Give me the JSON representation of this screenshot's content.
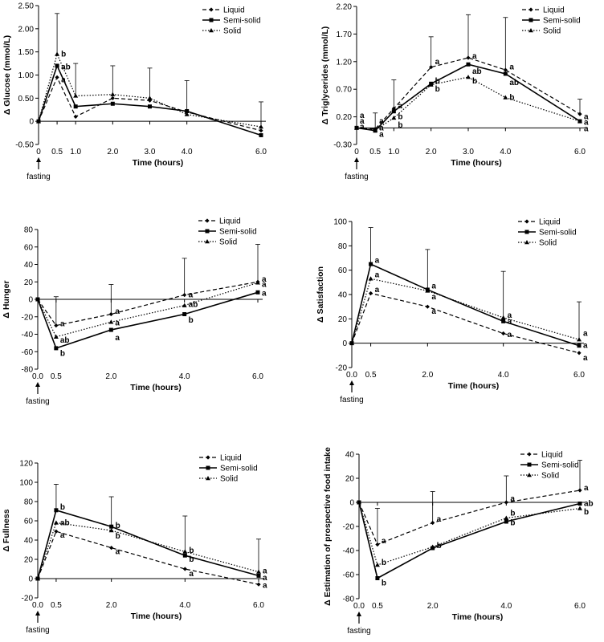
{
  "chart_data": [
    {
      "id": "glucose",
      "type": "line",
      "ylabel": "Δ Glucose (mmol/L)",
      "xlabel": "Time (hours)",
      "ylim": [
        -0.5,
        2.5
      ],
      "yticks": [
        "2.50",
        "2.00",
        "1.50",
        "1.00",
        "0.50",
        "0",
        "-0.50"
      ],
      "ytick_values": [
        2.5,
        2.0,
        1.5,
        1.0,
        0.5,
        0,
        -0.5
      ],
      "xticks": [
        "0",
        "0.5",
        "1.0",
        "2.0",
        "3.0",
        "4.0",
        "6.0"
      ],
      "xtick_values": [
        0,
        0.5,
        1,
        2,
        3,
        4,
        6
      ],
      "x": [
        0,
        0.5,
        1,
        2,
        3,
        4,
        6
      ],
      "series": [
        {
          "name": "Liquid",
          "style": "dash",
          "marker": "diamond",
          "values": [
            0,
            0.95,
            0.1,
            0.5,
            0.45,
            0.2,
            -0.2
          ]
        },
        {
          "name": "Semi-solid",
          "style": "solid",
          "marker": "square",
          "values": [
            0,
            1.2,
            0.32,
            0.38,
            0.32,
            0.22,
            -0.3
          ]
        },
        {
          "name": "Solid",
          "style": "dot",
          "marker": "triangle",
          "values": [
            0,
            1.45,
            0.55,
            0.58,
            0.5,
            0.15,
            -0.12
          ]
        }
      ],
      "errors": [
        {
          "x": 0.5,
          "top": 2.33
        },
        {
          "x": 1,
          "top": 1.25
        },
        {
          "x": 2,
          "top": 1.2
        },
        {
          "x": 3,
          "top": 1.15
        },
        {
          "x": 4,
          "top": 0.88
        },
        {
          "x": 6,
          "top": 0.42
        }
      ],
      "annotations": [
        {
          "x": 0.5,
          "y": 0.9,
          "text": "a"
        },
        {
          "x": 0.5,
          "y": 1.17,
          "text": "ab"
        },
        {
          "x": 0.5,
          "y": 1.45,
          "text": "b"
        }
      ],
      "legend": [
        "Liquid",
        "Semi-solid",
        "Solid"
      ],
      "fasting_label": "fasting"
    },
    {
      "id": "triglycerides",
      "type": "line",
      "ylabel": "Δ Triglycerides (mmol/L)",
      "xlabel": "Time (hours)",
      "ylim": [
        -0.3,
        2.2
      ],
      "yticks": [
        "2.20",
        "1.70",
        "1.20",
        "0.70",
        "0.20",
        "-0.30"
      ],
      "ytick_values": [
        2.2,
        1.7,
        1.2,
        0.7,
        0.2,
        -0.3
      ],
      "xticks": [
        "0",
        "0.5",
        "1.0",
        "2.0",
        "3.0",
        "4.0",
        "6.0"
      ],
      "xtick_values": [
        0,
        0.5,
        1,
        2,
        3,
        4,
        6
      ],
      "x": [
        0,
        0.5,
        1,
        2,
        3,
        4,
        6
      ],
      "series": [
        {
          "name": "Liquid",
          "style": "dash",
          "marker": "diamond",
          "values": [
            0,
            -0.02,
            0.35,
            1.1,
            1.27,
            1.05,
            0.25
          ]
        },
        {
          "name": "Semi-solid",
          "style": "solid",
          "marker": "square",
          "values": [
            0,
            -0.05,
            0.3,
            0.8,
            1.15,
            0.98,
            0.12
          ]
        },
        {
          "name": "Solid",
          "style": "dot",
          "marker": "triangle",
          "values": [
            0,
            -0.04,
            0.18,
            0.78,
            0.92,
            0.55,
            0.12
          ]
        }
      ],
      "errors": [
        {
          "x": 0.5,
          "top": 0.27
        },
        {
          "x": 1,
          "top": 0.87
        },
        {
          "x": 2,
          "top": 1.65
        },
        {
          "x": 3,
          "top": 2.05
        },
        {
          "x": 4,
          "top": 2.0
        },
        {
          "x": 6,
          "top": 0.52
        }
      ],
      "annotations": [
        {
          "x": 0,
          "y": 0.22,
          "text": "a"
        },
        {
          "x": 0,
          "y": 0.12,
          "text": "a"
        },
        {
          "x": 0,
          "y": 0.02,
          "text": "a"
        },
        {
          "x": 0.5,
          "y": 0.12,
          "text": "a"
        },
        {
          "x": 0.5,
          "y": 0.0,
          "text": "a"
        },
        {
          "x": 0.5,
          "y": -0.12,
          "text": "a"
        },
        {
          "x": 1,
          "y": 0.4,
          "text": "a"
        },
        {
          "x": 1,
          "y": 0.2,
          "text": "b"
        },
        {
          "x": 1,
          "y": 0.05,
          "text": "b"
        },
        {
          "x": 2,
          "y": 1.2,
          "text": "a"
        },
        {
          "x": 2,
          "y": 0.85,
          "text": "b"
        },
        {
          "x": 2,
          "y": 0.7,
          "text": "b"
        },
        {
          "x": 3,
          "y": 1.3,
          "text": "a"
        },
        {
          "x": 3,
          "y": 1.02,
          "text": "ab"
        },
        {
          "x": 3,
          "y": 0.85,
          "text": "b"
        },
        {
          "x": 4,
          "y": 1.1,
          "text": "a"
        },
        {
          "x": 4,
          "y": 0.82,
          "text": "ab"
        },
        {
          "x": 4,
          "y": 0.55,
          "text": "b"
        },
        {
          "x": 6,
          "y": 0.2,
          "text": "a"
        },
        {
          "x": 6,
          "y": 0.1,
          "text": "a"
        },
        {
          "x": 6,
          "y": -0.02,
          "text": "a"
        }
      ],
      "legend": [
        "Liquid",
        "Semi-solid",
        "Solid"
      ],
      "fasting_label": "fasting"
    },
    {
      "id": "hunger",
      "type": "line",
      "ylabel": "Δ Hunger",
      "xlabel": "Time (hours)",
      "ylim": [
        -80,
        80
      ],
      "yticks": [
        "80",
        "60",
        "40",
        "20",
        "0",
        "-20",
        "-40",
        "-60",
        "-80"
      ],
      "ytick_values": [
        80,
        60,
        40,
        20,
        0,
        -20,
        -40,
        -60,
        -80
      ],
      "xticks": [
        "0.0",
        "0.5",
        "2.0",
        "4.0",
        "6.0"
      ],
      "xtick_values": [
        0,
        0.5,
        2,
        4,
        6
      ],
      "x": [
        0,
        0.5,
        2,
        4,
        6
      ],
      "series": [
        {
          "name": "Liquid",
          "style": "dash",
          "marker": "diamond",
          "values": [
            0,
            -30,
            -17,
            5,
            20
          ]
        },
        {
          "name": "Semi-solid",
          "style": "solid",
          "marker": "square",
          "values": [
            0,
            -56,
            -35,
            -17,
            8
          ]
        },
        {
          "name": "Solid",
          "style": "dot",
          "marker": "triangle",
          "values": [
            0,
            -43,
            -26,
            -7,
            19
          ]
        }
      ],
      "errors": [
        {
          "x": 0.5,
          "top": 3
        },
        {
          "x": 2,
          "top": 17
        },
        {
          "x": 4,
          "top": 47
        },
        {
          "x": 6,
          "top": 63
        }
      ],
      "annotations": [
        {
          "x": 0.5,
          "y": -28,
          "text": "a"
        },
        {
          "x": 0.5,
          "y": -47,
          "text": "ab"
        },
        {
          "x": 0.5,
          "y": -62,
          "text": "b"
        },
        {
          "x": 2,
          "y": -14,
          "text": "a"
        },
        {
          "x": 2,
          "y": -27,
          "text": "a"
        },
        {
          "x": 2,
          "y": -44,
          "text": "a"
        },
        {
          "x": 4,
          "y": 5,
          "text": "a"
        },
        {
          "x": 4,
          "y": -6,
          "text": "ab"
        },
        {
          "x": 4,
          "y": -24,
          "text": "b"
        },
        {
          "x": 6,
          "y": 23,
          "text": "a"
        },
        {
          "x": 6,
          "y": 17,
          "text": "a"
        },
        {
          "x": 6,
          "y": 7,
          "text": "a"
        }
      ],
      "legend": [
        "Liquid",
        "Semi-solid",
        "Solid"
      ],
      "fasting_label": "fasting"
    },
    {
      "id": "satisfaction",
      "type": "line",
      "ylabel": "Δ Satisfaction",
      "xlabel": "Time (hours)",
      "ylim": [
        -20,
        100
      ],
      "yticks": [
        "100",
        "80",
        "60",
        "40",
        "20",
        "0",
        "-20"
      ],
      "ytick_values": [
        100,
        80,
        60,
        40,
        20,
        0,
        -20
      ],
      "xticks": [
        "0.0",
        "0.5",
        "2.0",
        "4.0",
        "6.0"
      ],
      "xtick_values": [
        0,
        0.5,
        2,
        4,
        6
      ],
      "x": [
        0,
        0.5,
        2,
        4,
        6
      ],
      "series": [
        {
          "name": "Liquid",
          "style": "dash",
          "marker": "diamond",
          "values": [
            0,
            41,
            30,
            8,
            -8
          ]
        },
        {
          "name": "Semi-solid",
          "style": "solid",
          "marker": "square",
          "values": [
            0,
            65,
            44,
            18,
            -2
          ]
        },
        {
          "name": "Solid",
          "style": "dot",
          "marker": "triangle",
          "values": [
            0,
            53,
            43,
            21,
            3
          ]
        }
      ],
      "errors": [
        {
          "x": 0.5,
          "top": 95
        },
        {
          "x": 2,
          "top": 77
        },
        {
          "x": 4,
          "top": 59
        },
        {
          "x": 6,
          "top": 34
        }
      ],
      "annotations": [
        {
          "x": 0.5,
          "y": 68,
          "text": "a"
        },
        {
          "x": 0.5,
          "y": 56,
          "text": "a"
        },
        {
          "x": 0.5,
          "y": 44,
          "text": "a"
        },
        {
          "x": 2,
          "y": 47,
          "text": "a"
        },
        {
          "x": 2,
          "y": 38,
          "text": "a"
        },
        {
          "x": 2,
          "y": 26,
          "text": "a"
        },
        {
          "x": 4,
          "y": 23,
          "text": "a"
        },
        {
          "x": 4,
          "y": 18,
          "text": "a"
        },
        {
          "x": 4,
          "y": 7,
          "text": "a"
        },
        {
          "x": 6,
          "y": 8,
          "text": "a"
        },
        {
          "x": 6,
          "y": -2,
          "text": "a"
        },
        {
          "x": 6,
          "y": -12,
          "text": "a"
        }
      ],
      "legend": [
        "Liquid",
        "Semi-solid",
        "Solid"
      ],
      "fasting_label": "fasting"
    },
    {
      "id": "fullness",
      "type": "line",
      "ylabel": "Δ Fullness",
      "xlabel": "Time (hours)",
      "ylim": [
        -20,
        120
      ],
      "yticks": [
        "120",
        "100",
        "80",
        "60",
        "40",
        "20",
        "0",
        "-20"
      ],
      "ytick_values": [
        120,
        100,
        80,
        60,
        40,
        20,
        0,
        -20
      ],
      "xticks": [
        "0.0",
        "0.5",
        "2.0",
        "4.0",
        "6.0"
      ],
      "xtick_values": [
        0,
        0.5,
        2,
        4,
        6
      ],
      "x": [
        0,
        0.5,
        2,
        4,
        6
      ],
      "series": [
        {
          "name": "Liquid",
          "style": "dash",
          "marker": "diamond",
          "values": [
            0,
            49,
            32,
            10,
            -6
          ]
        },
        {
          "name": "Semi-solid",
          "style": "solid",
          "marker": "square",
          "values": [
            0,
            71,
            54,
            24,
            3
          ]
        },
        {
          "name": "Solid",
          "style": "dot",
          "marker": "triangle",
          "values": [
            0,
            58,
            50,
            28,
            7
          ]
        }
      ],
      "errors": [
        {
          "x": 0.5,
          "top": 98
        },
        {
          "x": 2,
          "top": 85
        },
        {
          "x": 4,
          "top": 65
        },
        {
          "x": 6,
          "top": 41
        }
      ],
      "annotations": [
        {
          "x": 0.5,
          "y": 74,
          "text": "b"
        },
        {
          "x": 0.5,
          "y": 58,
          "text": "ab"
        },
        {
          "x": 0.5,
          "y": 45,
          "text": "a"
        },
        {
          "x": 2,
          "y": 55,
          "text": "b"
        },
        {
          "x": 2,
          "y": 44,
          "text": "b"
        },
        {
          "x": 2,
          "y": 28,
          "text": "a"
        },
        {
          "x": 4,
          "y": 29,
          "text": "b"
        },
        {
          "x": 4,
          "y": 20,
          "text": "b"
        },
        {
          "x": 4,
          "y": 5,
          "text": "a"
        },
        {
          "x": 6,
          "y": 8,
          "text": "a"
        },
        {
          "x": 6,
          "y": 1,
          "text": "a"
        },
        {
          "x": 6,
          "y": -7,
          "text": "a"
        }
      ],
      "legend": [
        "Liquid",
        "Semi-solid",
        "Solid"
      ],
      "fasting_label": "fasting"
    },
    {
      "id": "prospective",
      "type": "line",
      "ylabel": "Δ Estimation of prospective food intake",
      "xlabel": "Time (hours)",
      "ylim": [
        -80,
        40
      ],
      "yticks": [
        "40",
        "20",
        "0",
        "-20",
        "-40",
        "-60",
        "-80"
      ],
      "ytick_values": [
        40,
        20,
        0,
        -20,
        -40,
        -60,
        -80
      ],
      "xticks": [
        "0.0",
        "0.5",
        "2.0",
        "4.0",
        "6.0"
      ],
      "xtick_values": [
        0,
        0.5,
        2,
        4,
        6
      ],
      "x": [
        0,
        0.5,
        2,
        4,
        6
      ],
      "series": [
        {
          "name": "Liquid",
          "style": "dash",
          "marker": "diamond",
          "values": [
            0,
            -35,
            -17,
            0,
            10
          ]
        },
        {
          "name": "Semi-solid",
          "style": "solid",
          "marker": "square",
          "values": [
            0,
            -63,
            -38,
            -16,
            -1
          ]
        },
        {
          "name": "Solid",
          "style": "dot",
          "marker": "triangle",
          "values": [
            0,
            -52,
            -37,
            -13,
            -5
          ]
        }
      ],
      "errors": [
        {
          "x": 0.5,
          "top": -5
        },
        {
          "x": 2,
          "top": 9
        },
        {
          "x": 4,
          "top": 22
        },
        {
          "x": 6,
          "top": 35
        }
      ],
      "annotations": [
        {
          "x": 0.5,
          "y": -32,
          "text": "a"
        },
        {
          "x": 0.5,
          "y": -50,
          "text": "b"
        },
        {
          "x": 0.5,
          "y": -67,
          "text": "b"
        },
        {
          "x": 2,
          "y": -14,
          "text": "a"
        },
        {
          "x": 2,
          "y": -36,
          "text": "b"
        },
        {
          "x": 4,
          "y": 3,
          "text": "a"
        },
        {
          "x": 4,
          "y": -9,
          "text": "b"
        },
        {
          "x": 4,
          "y": -17,
          "text": "b"
        },
        {
          "x": 6,
          "y": 12,
          "text": "a"
        },
        {
          "x": 6,
          "y": -1,
          "text": "ab"
        },
        {
          "x": 6,
          "y": -8,
          "text": "b"
        }
      ],
      "legend": [
        "Liquid",
        "Semi-solid",
        "Solid"
      ],
      "fasting_label": "fasting"
    }
  ]
}
